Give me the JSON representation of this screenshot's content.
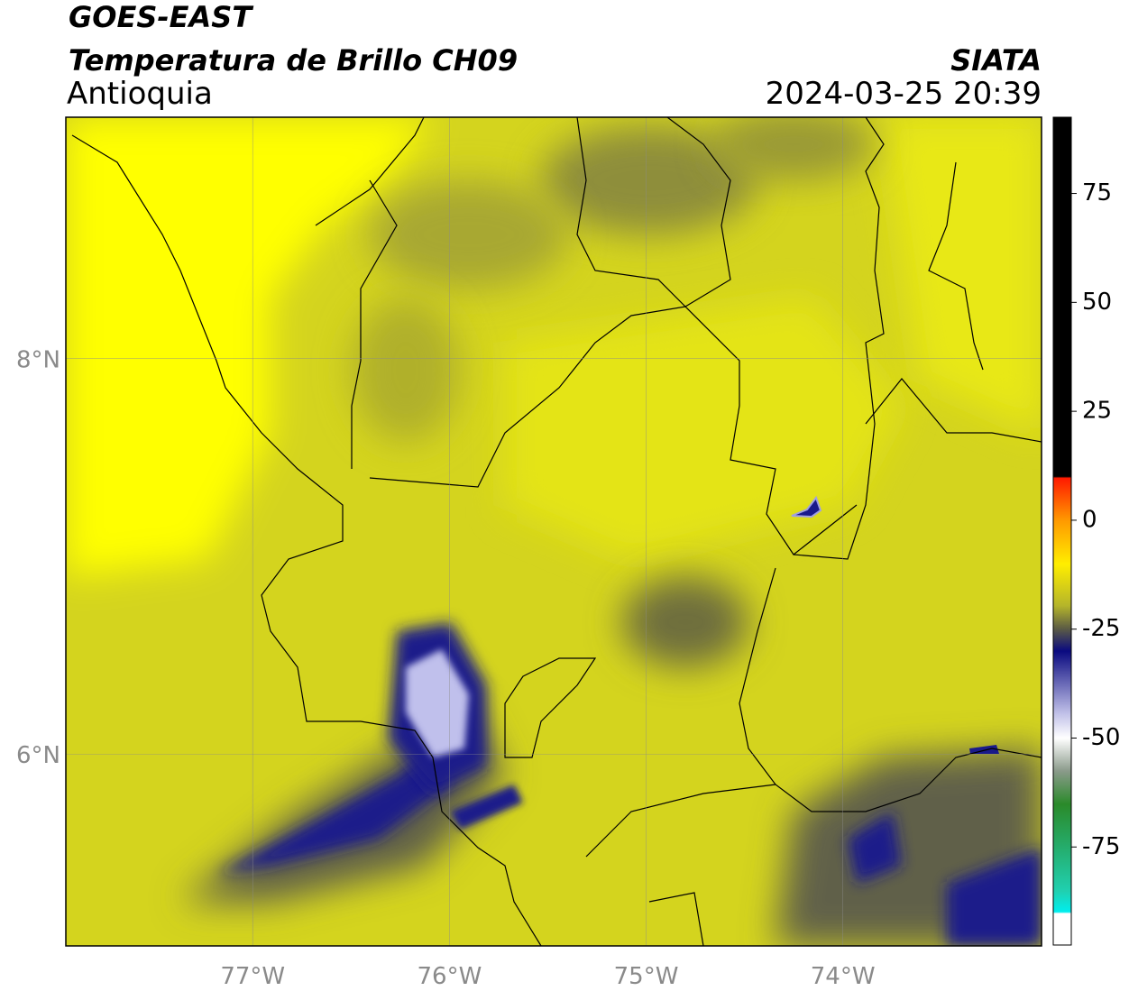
{
  "header": {
    "title": "GOES-EAST",
    "subtitle": "Temperatura de Brillo CH09",
    "region": "Antioquia",
    "source": "SIATA",
    "datetime": "2024-03-25 20:39"
  },
  "map": {
    "xlim": [
      -77.95,
      -72.99
    ],
    "ylim": [
      5.03,
      9.22
    ],
    "xticks": [
      {
        "value": -77,
        "label": "77°W"
      },
      {
        "value": -76,
        "label": "76°W"
      },
      {
        "value": -75,
        "label": "75°W"
      },
      {
        "value": -74,
        "label": "74°W"
      }
    ],
    "yticks": [
      {
        "value": 6,
        "label": "6°N"
      },
      {
        "value": 8,
        "label": "8°N"
      }
    ],
    "grid": true
  },
  "colorbar": {
    "lim": [
      -97.5,
      92.5
    ],
    "ticks": [
      75,
      50,
      25,
      0,
      -25,
      -50,
      -75
    ]
  }
}
